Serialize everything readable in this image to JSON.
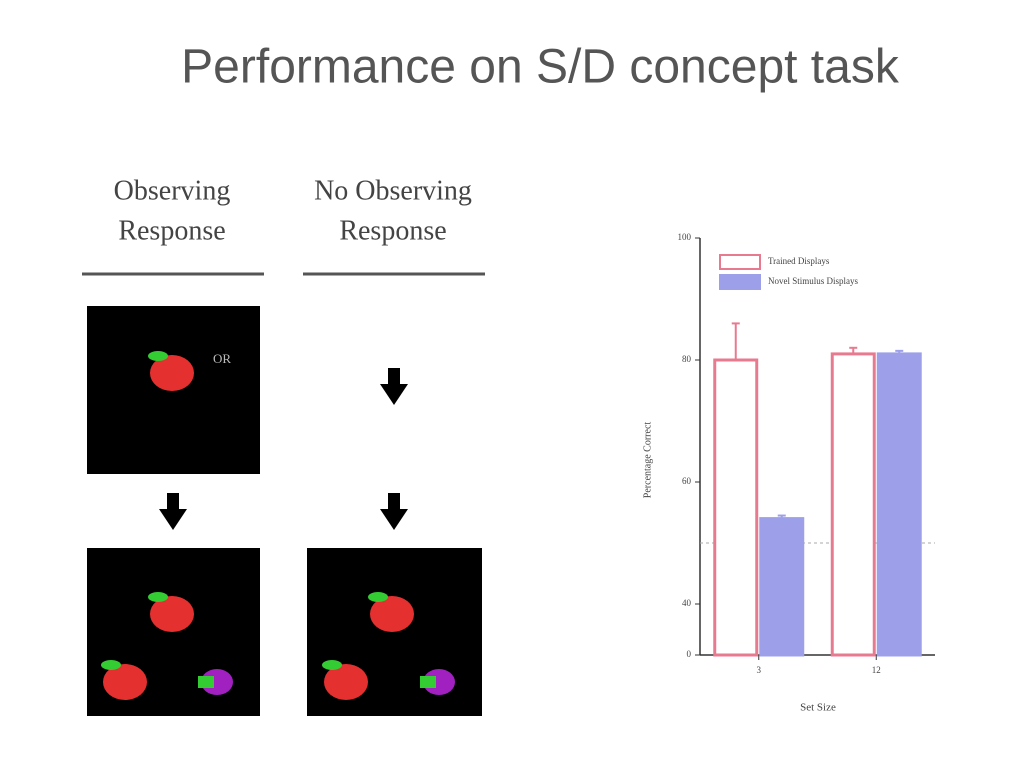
{
  "title": "Performance on S/D concept task",
  "panels": [
    {
      "heading": [
        "Observing",
        "Response"
      ],
      "cue": "OR"
    },
    {
      "heading": [
        "No Observing",
        "Response"
      ]
    }
  ],
  "chart_data": {
    "type": "bar",
    "categories": [
      "3",
      "12"
    ],
    "series": [
      {
        "name": "Trained Displays",
        "color": "#e87a90",
        "fill": "#ffffff",
        "values": [
          80,
          81
        ],
        "errors": [
          6,
          1
        ]
      },
      {
        "name": "Novel Stimulus Displays",
        "color": "#9da0e8",
        "fill": "#9da0e8",
        "values": [
          54,
          81
        ],
        "errors": [
          0.5,
          0.5
        ]
      }
    ],
    "ylim": [
      0,
      100
    ],
    "yticks": [
      0,
      40,
      60,
      80,
      100
    ],
    "axis_break": [
      0,
      40
    ],
    "reference_line": 50,
    "xlabel": "Set Size",
    "ylabel": "Percentage Correct",
    "legend": "top-left"
  }
}
